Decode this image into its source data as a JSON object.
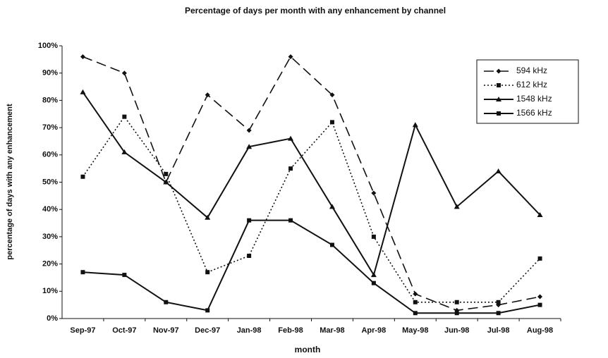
{
  "chart_data": {
    "type": "line",
    "title": "Percentage of days per month with any enhancement by channel",
    "x_label": "month",
    "y_label": "percentage of days with any enhancement",
    "categories": [
      "Sep-97",
      "Oct-97",
      "Nov-97",
      "Dec-97",
      "Jan-98",
      "Feb-98",
      "Mar-98",
      "Apr-98",
      "May-98",
      "Jun-98",
      "Jul-98",
      "Aug-98"
    ],
    "series": [
      {
        "name": "594 kHz",
        "color": "#111111",
        "line_style": "dashed",
        "marker": "diamond",
        "values": [
          96,
          90,
          50,
          82,
          69,
          96,
          82,
          46,
          9,
          3,
          5,
          8
        ]
      },
      {
        "name": "612 kHz",
        "color": "#111111",
        "line_style": "dotted",
        "marker": "square",
        "values": [
          52,
          74,
          53,
          17,
          23,
          55,
          72,
          30,
          6,
          6,
          6,
          22
        ]
      },
      {
        "name": "1548 kHz",
        "color": "#111111",
        "line_style": "solid",
        "marker": "triangle",
        "values": [
          83,
          61,
          50,
          37,
          63,
          66,
          41,
          16,
          71,
          41,
          54,
          38
        ]
      },
      {
        "name": "1566 kHz",
        "color": "#111111",
        "line_style": "solid",
        "marker": "square",
        "values": [
          17,
          16,
          6,
          3,
          36,
          36,
          27,
          13,
          2,
          2,
          2,
          5
        ]
      }
    ],
    "ylim": [
      0,
      100
    ],
    "yticks": [
      {
        "value": 0,
        "label": "0%"
      },
      {
        "value": 10,
        "label": "10%"
      },
      {
        "value": 20,
        "label": "20%"
      },
      {
        "value": 30,
        "label": "30%"
      },
      {
        "value": 40,
        "label": "40%"
      },
      {
        "value": 50,
        "label": "50%"
      },
      {
        "value": 60,
        "label": "60%"
      },
      {
        "value": 70,
        "label": "70%"
      },
      {
        "value": 80,
        "label": "80%"
      },
      {
        "value": 90,
        "label": "90%"
      },
      {
        "value": 100,
        "label": "100%"
      }
    ],
    "grid": false,
    "legend": "top-right"
  }
}
